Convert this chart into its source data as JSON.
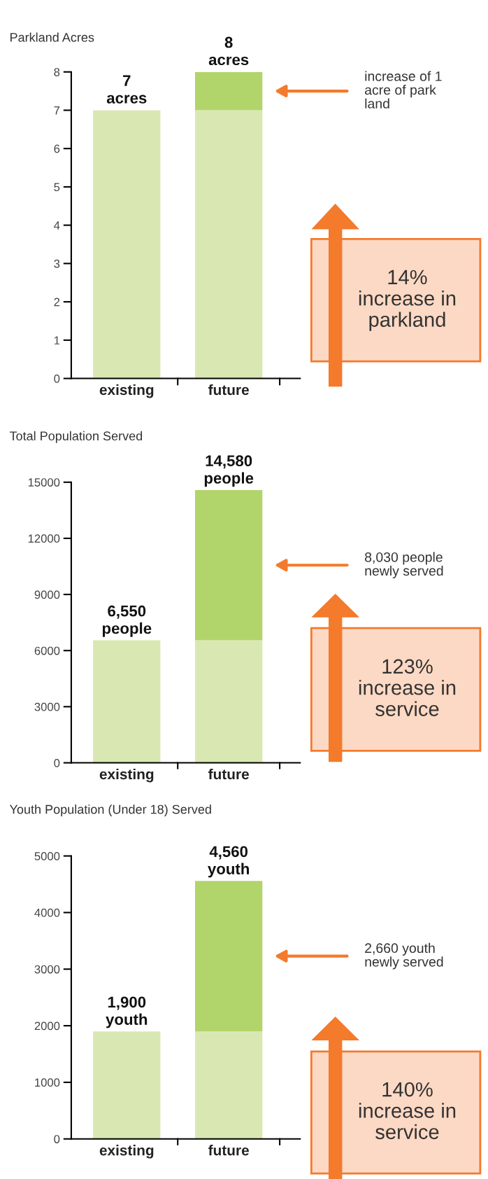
{
  "chart_data": [
    {
      "type": "bar",
      "title": "Parkland Acres",
      "categories": [
        "existing",
        "future"
      ],
      "stacked": true,
      "ylim": [
        0,
        8
      ],
      "yticks": [
        0,
        1,
        2,
        3,
        4,
        5,
        6,
        7,
        8
      ],
      "grid": false,
      "legend": false,
      "series": [
        {
          "color": "#d9e8b3",
          "values": [
            7,
            7
          ]
        },
        {
          "color": "#b1d56a",
          "values": [
            null,
            1
          ]
        }
      ],
      "totals": [
        "7\nacres",
        "8\nacres"
      ],
      "annotations": [
        "increase of 1\nacre of park\nland",
        "14%\nincrease in\nparkland"
      ]
    },
    {
      "type": "bar",
      "title": "Total Population Served",
      "categories": [
        "existing",
        "future"
      ],
      "stacked": true,
      "ylim": [
        0,
        15000
      ],
      "yticks": [
        0,
        3000,
        6000,
        9000,
        12000,
        15000
      ],
      "grid": false,
      "legend": false,
      "series": [
        {
          "color": "#d9e8b3",
          "values": [
            6550,
            6550
          ]
        },
        {
          "color": "#b1d56a",
          "values": [
            null,
            8030
          ]
        }
      ],
      "totals": [
        "6,550\npeople",
        "14,580\npeople"
      ],
      "annotations": [
        "8,030 people\nnewly served",
        "123%\nincrease in\nservice"
      ]
    },
    {
      "type": "bar",
      "title": "Youth Population (Under 18) Served",
      "categories": [
        "existing",
        "future"
      ],
      "stacked": true,
      "ylim": [
        0,
        5000
      ],
      "yticks": [
        0,
        1000,
        2000,
        3000,
        4000,
        5000
      ],
      "grid": false,
      "legend": false,
      "series": [
        {
          "color": "#d9e8b3",
          "values": [
            1900,
            1900
          ]
        },
        {
          "color": "#b1d56a",
          "values": [
            null,
            2660
          ]
        }
      ],
      "totals": [
        "1,900\nyouth",
        "4,560\nyouth"
      ],
      "annotations": [
        "2,660 youth\nnewly served",
        "140%\nincrease in\nservice"
      ]
    }
  ]
}
